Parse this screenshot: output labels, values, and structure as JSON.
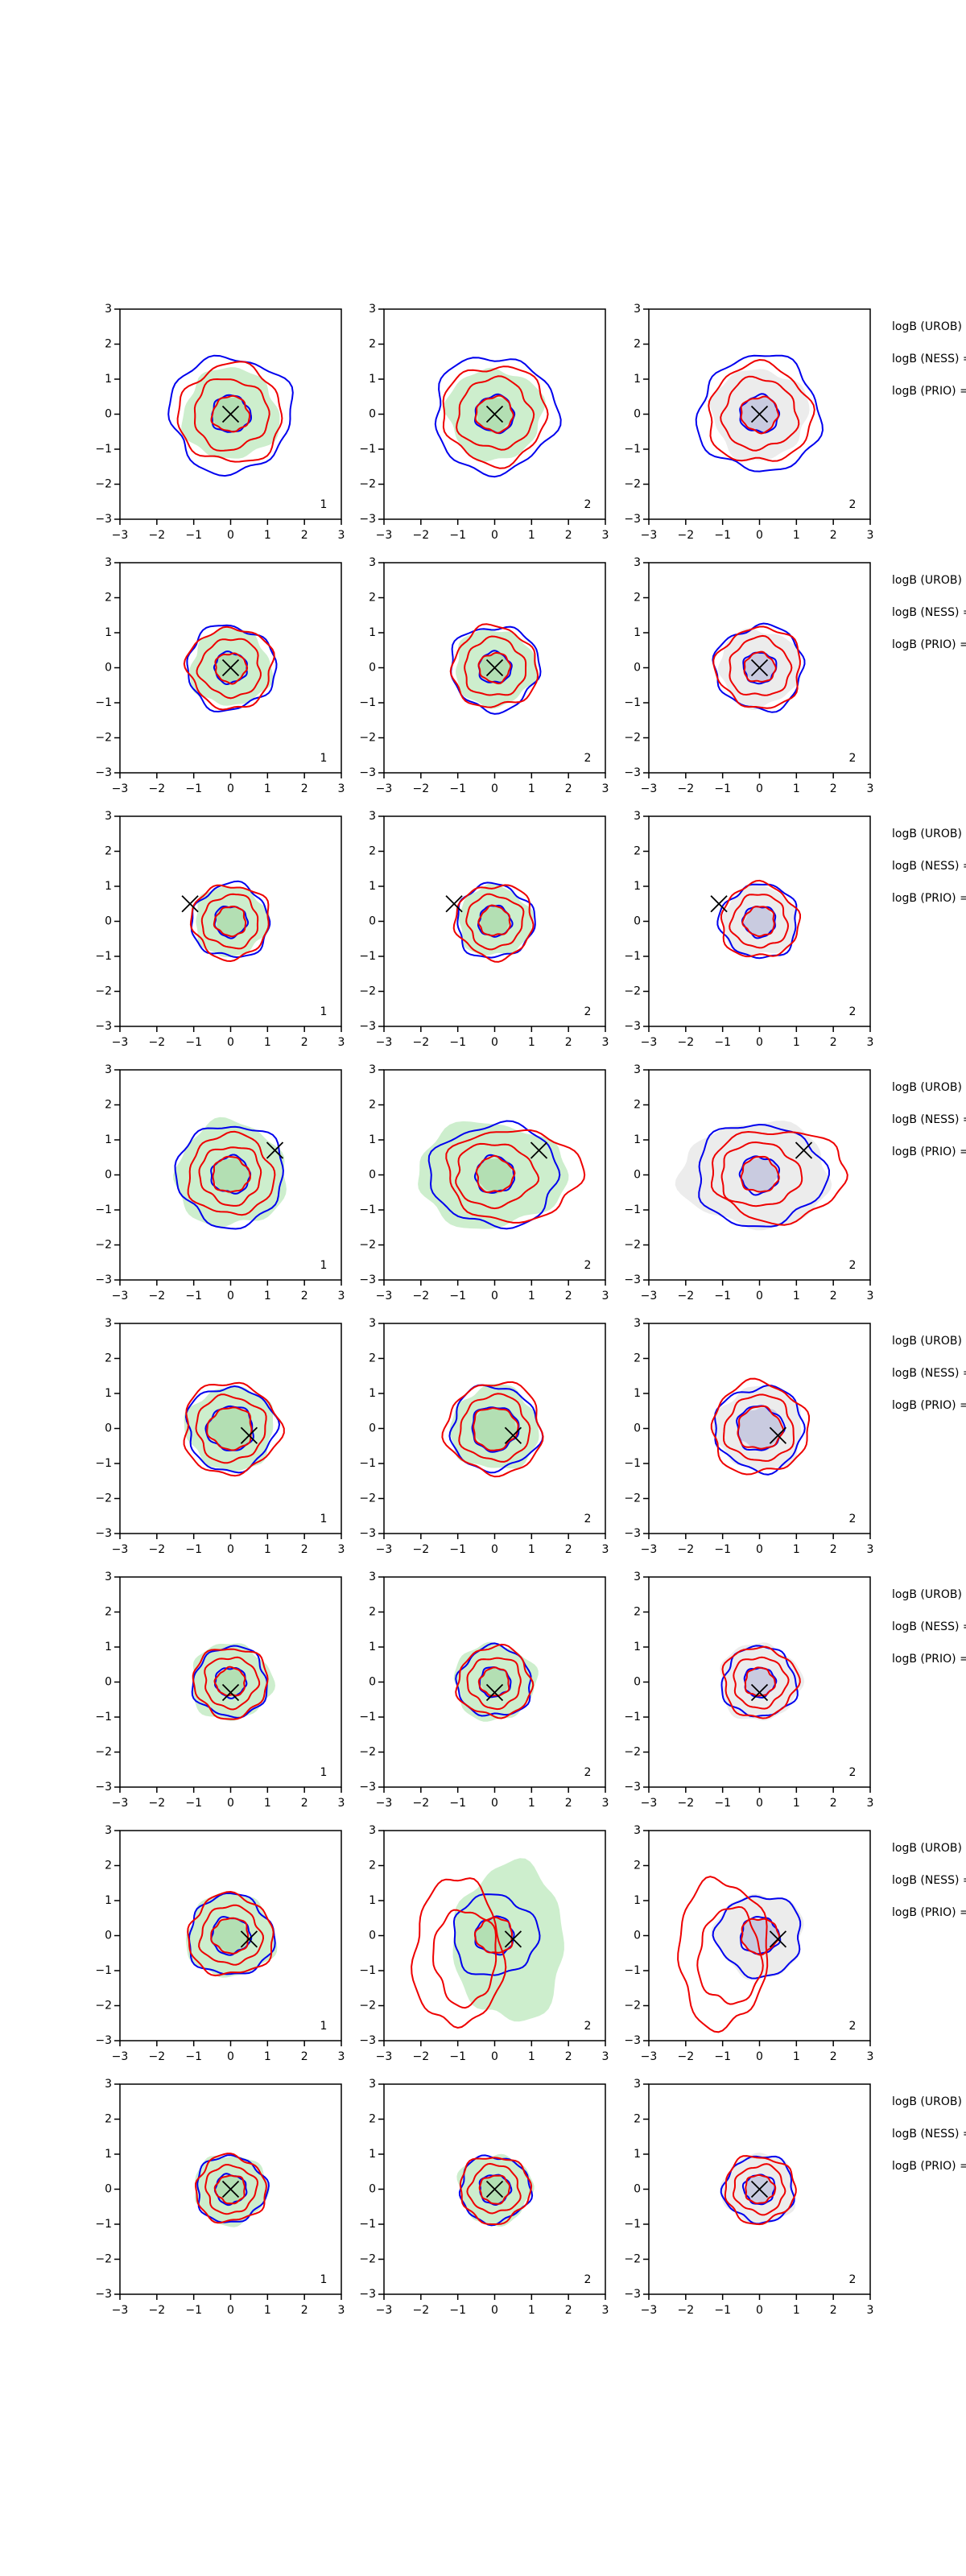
{
  "chart_data": [
    {
      "type": "contour",
      "xlim": [
        -3,
        3
      ],
      "ylim": [
        -3,
        3
      ],
      "xticks": [
        {
          "value": -3,
          "label": "−3"
        },
        {
          "value": -2,
          "label": "−2"
        },
        {
          "value": -1,
          "label": "−1"
        },
        0,
        1,
        2,
        3
      ],
      "yticks": [
        {
          "value": -3,
          "label": "−3"
        },
        {
          "value": -2,
          "label": "−2"
        },
        {
          "value": -1,
          "label": "−1"
        },
        0,
        1,
        2,
        3
      ],
      "x": [
        0
      ],
      "y": [
        0
      ],
      "panel_label": "1"
    },
    {
      "type": "contour",
      "xlim": [
        -3,
        3
      ],
      "ylim": [
        -3,
        3
      ],
      "xticks": [
        {
          "value": -3,
          "label": "−3"
        },
        {
          "value": -2,
          "label": "−2"
        },
        {
          "value": -1,
          "label": "−1"
        },
        0,
        1,
        2,
        3
      ],
      "yticks": [
        {
          "value": -3,
          "label": "−3"
        },
        {
          "value": -2,
          "label": "−2"
        },
        {
          "value": -1,
          "label": "−1"
        },
        0,
        1,
        2,
        3
      ],
      "x": [
        0
      ],
      "y": [
        0
      ],
      "panel_label": "2"
    },
    {
      "type": "contour",
      "xlim": [
        -3,
        3
      ],
      "ylim": [
        -3,
        3
      ],
      "xticks": [
        {
          "value": -3,
          "label": "−3"
        },
        {
          "value": -2,
          "label": "−2"
        },
        {
          "value": -1,
          "label": "−1"
        },
        0,
        1,
        2,
        3
      ],
      "yticks": [
        {
          "value": -3,
          "label": "−3"
        },
        {
          "value": -2,
          "label": "−2"
        },
        {
          "value": -1,
          "label": "−1"
        },
        0,
        1,
        2,
        3
      ],
      "x": [
        0
      ],
      "y": [
        0
      ],
      "panel_label": "2",
      "annotations": [
        "logB (UROB) =",
        "logB (NESS) =",
        "logB (PRIO) ="
      ]
    },
    {
      "type": "contour",
      "xlim": [
        -3,
        3
      ],
      "ylim": [
        -3,
        3
      ],
      "xticks": [
        {
          "value": -3,
          "label": "−3"
        },
        {
          "value": -2,
          "label": "−2"
        },
        {
          "value": -1,
          "label": "−1"
        },
        0,
        1,
        2,
        3
      ],
      "yticks": [
        {
          "value": -3,
          "label": "−3"
        },
        {
          "value": -2,
          "label": "−2"
        },
        {
          "value": -1,
          "label": "−1"
        },
        0,
        1,
        2,
        3
      ],
      "x": [
        0
      ],
      "y": [
        0
      ],
      "panel_label": "1"
    },
    {
      "type": "contour",
      "xlim": [
        -3,
        3
      ],
      "ylim": [
        -3,
        3
      ],
      "xticks": [
        {
          "value": -3,
          "label": "−3"
        },
        {
          "value": -2,
          "label": "−2"
        },
        {
          "value": -1,
          "label": "−1"
        },
        0,
        1,
        2,
        3
      ],
      "yticks": [
        {
          "value": -3,
          "label": "−3"
        },
        {
          "value": -2,
          "label": "−2"
        },
        {
          "value": -1,
          "label": "−1"
        },
        0,
        1,
        2,
        3
      ],
      "x": [
        0
      ],
      "y": [
        0
      ],
      "panel_label": "2"
    },
    {
      "type": "contour",
      "xlim": [
        -3,
        3
      ],
      "ylim": [
        -3,
        3
      ],
      "xticks": [
        {
          "value": -3,
          "label": "−3"
        },
        {
          "value": -2,
          "label": "−2"
        },
        {
          "value": -1,
          "label": "−1"
        },
        0,
        1,
        2,
        3
      ],
      "yticks": [
        {
          "value": -3,
          "label": "−3"
        },
        {
          "value": -2,
          "label": "−2"
        },
        {
          "value": -1,
          "label": "−1"
        },
        0,
        1,
        2,
        3
      ],
      "x": [
        0
      ],
      "y": [
        0
      ],
      "panel_label": "2",
      "annotations": [
        "logB (UROB) =",
        "logB (NESS) =",
        "logB (PRIO) ="
      ]
    },
    {
      "type": "contour",
      "xlim": [
        -3,
        3
      ],
      "ylim": [
        -3,
        3
      ],
      "xticks": [
        {
          "value": -3,
          "label": "−3"
        },
        {
          "value": -2,
          "label": "−2"
        },
        {
          "value": -1,
          "label": "−1"
        },
        0,
        1,
        2,
        3
      ],
      "yticks": [
        {
          "value": -3,
          "label": "−3"
        },
        {
          "value": -2,
          "label": "−2"
        },
        {
          "value": -1,
          "label": "−1"
        },
        0,
        1,
        2,
        3
      ],
      "x": [
        -1.1
      ],
      "y": [
        0.5
      ],
      "panel_label": "1"
    },
    {
      "type": "contour",
      "xlim": [
        -3,
        3
      ],
      "ylim": [
        -3,
        3
      ],
      "xticks": [
        {
          "value": -3,
          "label": "−3"
        },
        {
          "value": -2,
          "label": "−2"
        },
        {
          "value": -1,
          "label": "−1"
        },
        0,
        1,
        2,
        3
      ],
      "yticks": [
        {
          "value": -3,
          "label": "−3"
        },
        {
          "value": -2,
          "label": "−2"
        },
        {
          "value": -1,
          "label": "−1"
        },
        0,
        1,
        2,
        3
      ],
      "x": [
        -1.1
      ],
      "y": [
        0.5
      ],
      "panel_label": "2"
    },
    {
      "type": "contour",
      "xlim": [
        -3,
        3
      ],
      "ylim": [
        -3,
        3
      ],
      "xticks": [
        {
          "value": -3,
          "label": "−3"
        },
        {
          "value": -2,
          "label": "−2"
        },
        {
          "value": -1,
          "label": "−1"
        },
        0,
        1,
        2,
        3
      ],
      "yticks": [
        {
          "value": -3,
          "label": "−3"
        },
        {
          "value": -2,
          "label": "−2"
        },
        {
          "value": -1,
          "label": "−1"
        },
        0,
        1,
        2,
        3
      ],
      "x": [
        -1.1
      ],
      "y": [
        0.5
      ],
      "panel_label": "2",
      "annotations": [
        "logB (UROB) =",
        "logB (NESS) =",
        "logB (PRIO) ="
      ]
    },
    {
      "type": "contour",
      "xlim": [
        -3,
        3
      ],
      "ylim": [
        -3,
        3
      ],
      "xticks": [
        {
          "value": -3,
          "label": "−3"
        },
        {
          "value": -2,
          "label": "−2"
        },
        {
          "value": -1,
          "label": "−1"
        },
        0,
        1,
        2,
        3
      ],
      "yticks": [
        {
          "value": -3,
          "label": "−3"
        },
        {
          "value": -2,
          "label": "−2"
        },
        {
          "value": -1,
          "label": "−1"
        },
        0,
        1,
        2,
        3
      ],
      "x": [
        1.2
      ],
      "y": [
        0.7
      ],
      "panel_label": "1"
    },
    {
      "type": "contour",
      "xlim": [
        -3,
        3
      ],
      "ylim": [
        -3,
        3
      ],
      "xticks": [
        {
          "value": -3,
          "label": "−3"
        },
        {
          "value": -2,
          "label": "−2"
        },
        {
          "value": -1,
          "label": "−1"
        },
        0,
        1,
        2,
        3
      ],
      "yticks": [
        {
          "value": -3,
          "label": "−3"
        },
        {
          "value": -2,
          "label": "−2"
        },
        {
          "value": -1,
          "label": "−1"
        },
        0,
        1,
        2,
        3
      ],
      "x": [
        1.2
      ],
      "y": [
        0.7
      ],
      "panel_label": "2"
    },
    {
      "type": "contour",
      "xlim": [
        -3,
        3
      ],
      "ylim": [
        -3,
        3
      ],
      "xticks": [
        {
          "value": -3,
          "label": "−3"
        },
        {
          "value": -2,
          "label": "−2"
        },
        {
          "value": -1,
          "label": "−1"
        },
        0,
        1,
        2,
        3
      ],
      "yticks": [
        {
          "value": -3,
          "label": "−3"
        },
        {
          "value": -2,
          "label": "−2"
        },
        {
          "value": -1,
          "label": "−1"
        },
        0,
        1,
        2,
        3
      ],
      "x": [
        1.2
      ],
      "y": [
        0.7
      ],
      "panel_label": "2",
      "annotations": [
        "logB (UROB) =",
        "logB (NESS) =",
        "logB (PRIO) ="
      ]
    },
    {
      "type": "contour",
      "xlim": [
        -3,
        3
      ],
      "ylim": [
        -3,
        3
      ],
      "xticks": [
        {
          "value": -3,
          "label": "−3"
        },
        {
          "value": -2,
          "label": "−2"
        },
        {
          "value": -1,
          "label": "−1"
        },
        0,
        1,
        2,
        3
      ],
      "yticks": [
        {
          "value": -3,
          "label": "−3"
        },
        {
          "value": -2,
          "label": "−2"
        },
        {
          "value": -1,
          "label": "−1"
        },
        0,
        1,
        2,
        3
      ],
      "x": [
        0.5
      ],
      "y": [
        -0.2
      ],
      "panel_label": "1"
    },
    {
      "type": "contour",
      "xlim": [
        -3,
        3
      ],
      "ylim": [
        -3,
        3
      ],
      "xticks": [
        {
          "value": -3,
          "label": "−3"
        },
        {
          "value": -2,
          "label": "−2"
        },
        {
          "value": -1,
          "label": "−1"
        },
        0,
        1,
        2,
        3
      ],
      "yticks": [
        {
          "value": -3,
          "label": "−3"
        },
        {
          "value": -2,
          "label": "−2"
        },
        {
          "value": -1,
          "label": "−1"
        },
        0,
        1,
        2,
        3
      ],
      "x": [
        0.5
      ],
      "y": [
        -0.2
      ],
      "panel_label": "2"
    },
    {
      "type": "contour",
      "xlim": [
        -3,
        3
      ],
      "ylim": [
        -3,
        3
      ],
      "xticks": [
        {
          "value": -3,
          "label": "−3"
        },
        {
          "value": -2,
          "label": "−2"
        },
        {
          "value": -1,
          "label": "−1"
        },
        0,
        1,
        2,
        3
      ],
      "yticks": [
        {
          "value": -3,
          "label": "−3"
        },
        {
          "value": -2,
          "label": "−2"
        },
        {
          "value": -1,
          "label": "−1"
        },
        0,
        1,
        2,
        3
      ],
      "x": [
        0.5
      ],
      "y": [
        -0.2
      ],
      "panel_label": "2",
      "annotations": [
        "logB (UROB) =",
        "logB (NESS) =",
        "logB (PRIO) ="
      ]
    },
    {
      "type": "contour",
      "xlim": [
        -3,
        3
      ],
      "ylim": [
        -3,
        3
      ],
      "xticks": [
        {
          "value": -3,
          "label": "−3"
        },
        {
          "value": -2,
          "label": "−2"
        },
        {
          "value": -1,
          "label": "−1"
        },
        0,
        1,
        2,
        3
      ],
      "yticks": [
        {
          "value": -3,
          "label": "−3"
        },
        {
          "value": -2,
          "label": "−2"
        },
        {
          "value": -1,
          "label": "−1"
        },
        0,
        1,
        2,
        3
      ],
      "x": [
        0
      ],
      "y": [
        -0.3
      ],
      "panel_label": "1"
    },
    {
      "type": "contour",
      "xlim": [
        -3,
        3
      ],
      "ylim": [
        -3,
        3
      ],
      "xticks": [
        {
          "value": -3,
          "label": "−3"
        },
        {
          "value": -2,
          "label": "−2"
        },
        {
          "value": -1,
          "label": "−1"
        },
        0,
        1,
        2,
        3
      ],
      "yticks": [
        {
          "value": -3,
          "label": "−3"
        },
        {
          "value": -2,
          "label": "−2"
        },
        {
          "value": -1,
          "label": "−1"
        },
        0,
        1,
        2,
        3
      ],
      "x": [
        0
      ],
      "y": [
        -0.3
      ],
      "panel_label": "2"
    },
    {
      "type": "contour",
      "xlim": [
        -3,
        3
      ],
      "ylim": [
        -3,
        3
      ],
      "xticks": [
        {
          "value": -3,
          "label": "−3"
        },
        {
          "value": -2,
          "label": "−2"
        },
        {
          "value": -1,
          "label": "−1"
        },
        0,
        1,
        2,
        3
      ],
      "yticks": [
        {
          "value": -3,
          "label": "−3"
        },
        {
          "value": -2,
          "label": "−2"
        },
        {
          "value": -1,
          "label": "−1"
        },
        0,
        1,
        2,
        3
      ],
      "x": [
        0
      ],
      "y": [
        -0.3
      ],
      "panel_label": "2",
      "annotations": [
        "logB (UROB) =",
        "logB (NESS) =",
        "logB (PRIO) ="
      ]
    },
    {
      "type": "contour",
      "xlim": [
        -3,
        3
      ],
      "ylim": [
        -3,
        3
      ],
      "xticks": [
        {
          "value": -3,
          "label": "−3"
        },
        {
          "value": -2,
          "label": "−2"
        },
        {
          "value": -1,
          "label": "−1"
        },
        0,
        1,
        2,
        3
      ],
      "yticks": [
        {
          "value": -3,
          "label": "−3"
        },
        {
          "value": -2,
          "label": "−2"
        },
        {
          "value": -1,
          "label": "−1"
        },
        0,
        1,
        2,
        3
      ],
      "x": [
        0.5
      ],
      "y": [
        -0.1
      ],
      "panel_label": "1"
    },
    {
      "type": "contour",
      "xlim": [
        -3,
        3
      ],
      "ylim": [
        -3,
        3
      ],
      "xticks": [
        {
          "value": -3,
          "label": "−3"
        },
        {
          "value": -2,
          "label": "−2"
        },
        {
          "value": -1,
          "label": "−1"
        },
        0,
        1,
        2,
        3
      ],
      "yticks": [
        {
          "value": -3,
          "label": "−3"
        },
        {
          "value": -2,
          "label": "−2"
        },
        {
          "value": -1,
          "label": "−1"
        },
        0,
        1,
        2,
        3
      ],
      "x": [
        0.5
      ],
      "y": [
        -0.1
      ],
      "panel_label": "2"
    },
    {
      "type": "contour",
      "xlim": [
        -3,
        3
      ],
      "ylim": [
        -3,
        3
      ],
      "xticks": [
        {
          "value": -3,
          "label": "−3"
        },
        {
          "value": -2,
          "label": "−2"
        },
        {
          "value": -1,
          "label": "−1"
        },
        0,
        1,
        2,
        3
      ],
      "yticks": [
        {
          "value": -3,
          "label": "−3"
        },
        {
          "value": -2,
          "label": "−2"
        },
        {
          "value": -1,
          "label": "−1"
        },
        0,
        1,
        2,
        3
      ],
      "x": [
        0.5
      ],
      "y": [
        -0.1
      ],
      "panel_label": "2",
      "annotations": [
        "logB (UROB) =",
        "logB (NESS) =",
        "logB (PRIO) ="
      ]
    },
    {
      "type": "contour",
      "xlim": [
        -3,
        3
      ],
      "ylim": [
        -3,
        3
      ],
      "xticks": [
        {
          "value": -3,
          "label": "−3"
        },
        {
          "value": -2,
          "label": "−2"
        },
        {
          "value": -1,
          "label": "−1"
        },
        0,
        1,
        2,
        3
      ],
      "yticks": [
        {
          "value": -3,
          "label": "−3"
        },
        {
          "value": -2,
          "label": "−2"
        },
        {
          "value": -1,
          "label": "−1"
        },
        0,
        1,
        2,
        3
      ],
      "x": [
        0
      ],
      "y": [
        0
      ],
      "panel_label": "1"
    },
    {
      "type": "contour",
      "xlim": [
        -3,
        3
      ],
      "ylim": [
        -3,
        3
      ],
      "xticks": [
        {
          "value": -3,
          "label": "−3"
        },
        {
          "value": -2,
          "label": "−2"
        },
        {
          "value": -1,
          "label": "−1"
        },
        0,
        1,
        2,
        3
      ],
      "yticks": [
        {
          "value": -3,
          "label": "−3"
        },
        {
          "value": -2,
          "label": "−2"
        },
        {
          "value": -1,
          "label": "−1"
        },
        0,
        1,
        2,
        3
      ],
      "x": [
        0
      ],
      "y": [
        0
      ],
      "panel_label": "2"
    },
    {
      "type": "contour",
      "xlim": [
        -3,
        3
      ],
      "ylim": [
        -3,
        3
      ],
      "xticks": [
        {
          "value": -3,
          "label": "−3"
        },
        {
          "value": -2,
          "label": "−2"
        },
        {
          "value": -1,
          "label": "−1"
        },
        0,
        1,
        2,
        3
      ],
      "yticks": [
        {
          "value": -3,
          "label": "−3"
        },
        {
          "value": -2,
          "label": "−2"
        },
        {
          "value": -1,
          "label": "−1"
        },
        0,
        1,
        2,
        3
      ],
      "x": [
        0
      ],
      "y": [
        0
      ],
      "panel_label": "2",
      "annotations": [
        "logB (UROB) =",
        "logB (NESS) =",
        "logB (PRIO) ="
      ]
    }
  ]
}
